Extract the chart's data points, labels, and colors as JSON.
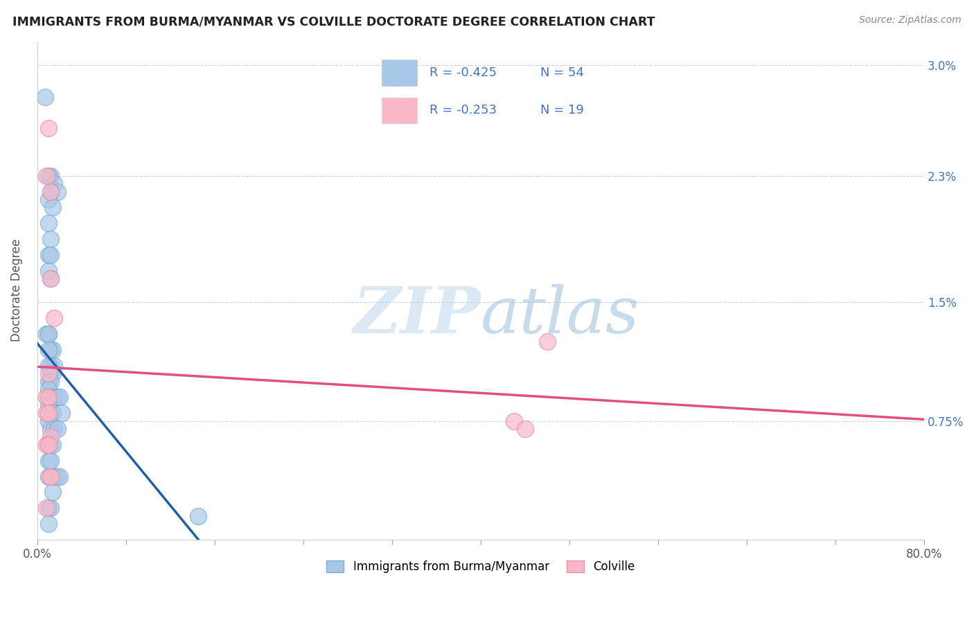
{
  "title": "IMMIGRANTS FROM BURMA/MYANMAR VS COLVILLE DOCTORATE DEGREE CORRELATION CHART",
  "source": "Source: ZipAtlas.com",
  "ylabel": "Doctorate Degree",
  "ytick_labels": [
    "",
    "0.75%",
    "1.5%",
    "2.3%",
    "3.0%"
  ],
  "xlim": [
    0.0,
    0.8
  ],
  "ylim": [
    0.0,
    0.0315
  ],
  "legend_R1": "R = -0.425",
  "legend_N1": "N = 54",
  "legend_R2": "R = -0.253",
  "legend_N2": "N = 19",
  "blue_color": "#a8c8e8",
  "blue_edge_color": "#7aadd4",
  "blue_line_color": "#1f5fa6",
  "pink_color": "#f9b8c8",
  "pink_edge_color": "#e890a8",
  "pink_line_color": "#e05080",
  "blue_scatter_x": [
    0.007,
    0.012,
    0.01,
    0.015,
    0.018,
    0.01,
    0.012,
    0.014,
    0.01,
    0.012,
    0.01,
    0.012,
    0.01,
    0.012,
    0.01,
    0.008,
    0.01,
    0.012,
    0.014,
    0.01,
    0.012,
    0.015,
    0.01,
    0.012,
    0.014,
    0.01,
    0.012,
    0.01,
    0.012,
    0.015,
    0.018,
    0.02,
    0.01,
    0.012,
    0.014,
    0.022,
    0.01,
    0.012,
    0.015,
    0.018,
    0.01,
    0.012,
    0.014,
    0.01,
    0.012,
    0.01,
    0.015,
    0.018,
    0.02,
    0.014,
    0.01,
    0.012,
    0.145,
    0.01
  ],
  "blue_scatter_y": [
    0.028,
    0.023,
    0.023,
    0.0225,
    0.022,
    0.0215,
    0.022,
    0.021,
    0.02,
    0.019,
    0.018,
    0.018,
    0.017,
    0.0165,
    0.013,
    0.013,
    0.013,
    0.012,
    0.012,
    0.012,
    0.011,
    0.011,
    0.011,
    0.0105,
    0.0105,
    0.01,
    0.01,
    0.0095,
    0.009,
    0.009,
    0.009,
    0.009,
    0.0085,
    0.008,
    0.008,
    0.008,
    0.0075,
    0.007,
    0.007,
    0.007,
    0.006,
    0.006,
    0.006,
    0.005,
    0.005,
    0.004,
    0.004,
    0.004,
    0.004,
    0.003,
    0.002,
    0.002,
    0.0015,
    0.001
  ],
  "pink_scatter_x": [
    0.01,
    0.008,
    0.012,
    0.012,
    0.015,
    0.01,
    0.008,
    0.01,
    0.008,
    0.01,
    0.012,
    0.008,
    0.01,
    0.012,
    0.43,
    0.44,
    0.46,
    0.008,
    0.012
  ],
  "pink_scatter_y": [
    0.026,
    0.023,
    0.022,
    0.0165,
    0.014,
    0.0105,
    0.009,
    0.009,
    0.008,
    0.008,
    0.0065,
    0.006,
    0.006,
    0.004,
    0.0075,
    0.007,
    0.0125,
    0.002,
    0.004
  ],
  "watermark_zip": "ZIP",
  "watermark_atlas": "atlas",
  "grid_color": "#d0d0d0",
  "background_color": "#ffffff",
  "xtick_count": 10
}
